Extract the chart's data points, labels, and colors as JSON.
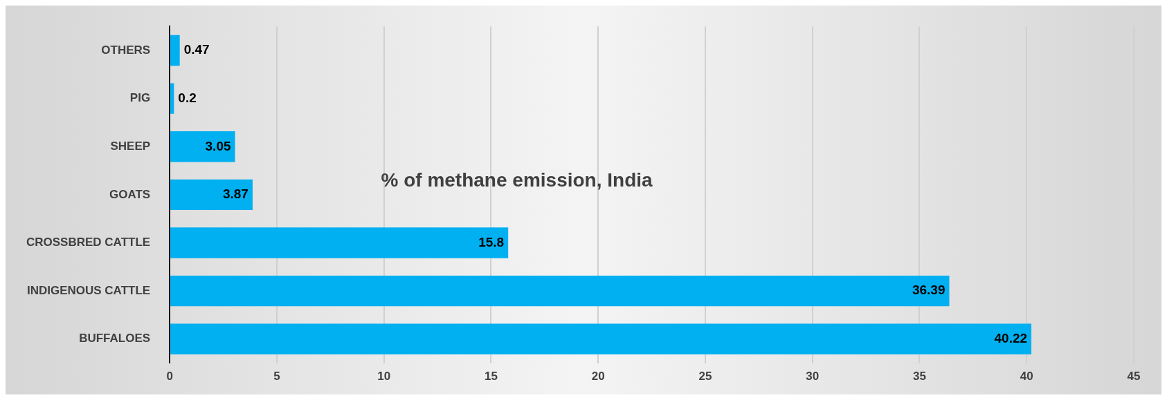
{
  "chart_data": {
    "type": "bar",
    "orientation": "horizontal",
    "title": "% of methane emission, India",
    "categories": [
      "OTHERS",
      "PIG",
      "SHEEP",
      "GOATS",
      "CROSSBRED CATTLE",
      "INDIGENOUS CATTLE",
      "BUFFALOES"
    ],
    "values": [
      0.47,
      0.2,
      3.05,
      3.87,
      15.8,
      36.39,
      40.22
    ],
    "color": "#00b0f0",
    "xlim": [
      0,
      45
    ],
    "xticks": [
      0,
      5,
      10,
      15,
      20,
      25,
      30,
      35,
      40,
      45
    ],
    "grid": "x",
    "data_labels": true
  }
}
